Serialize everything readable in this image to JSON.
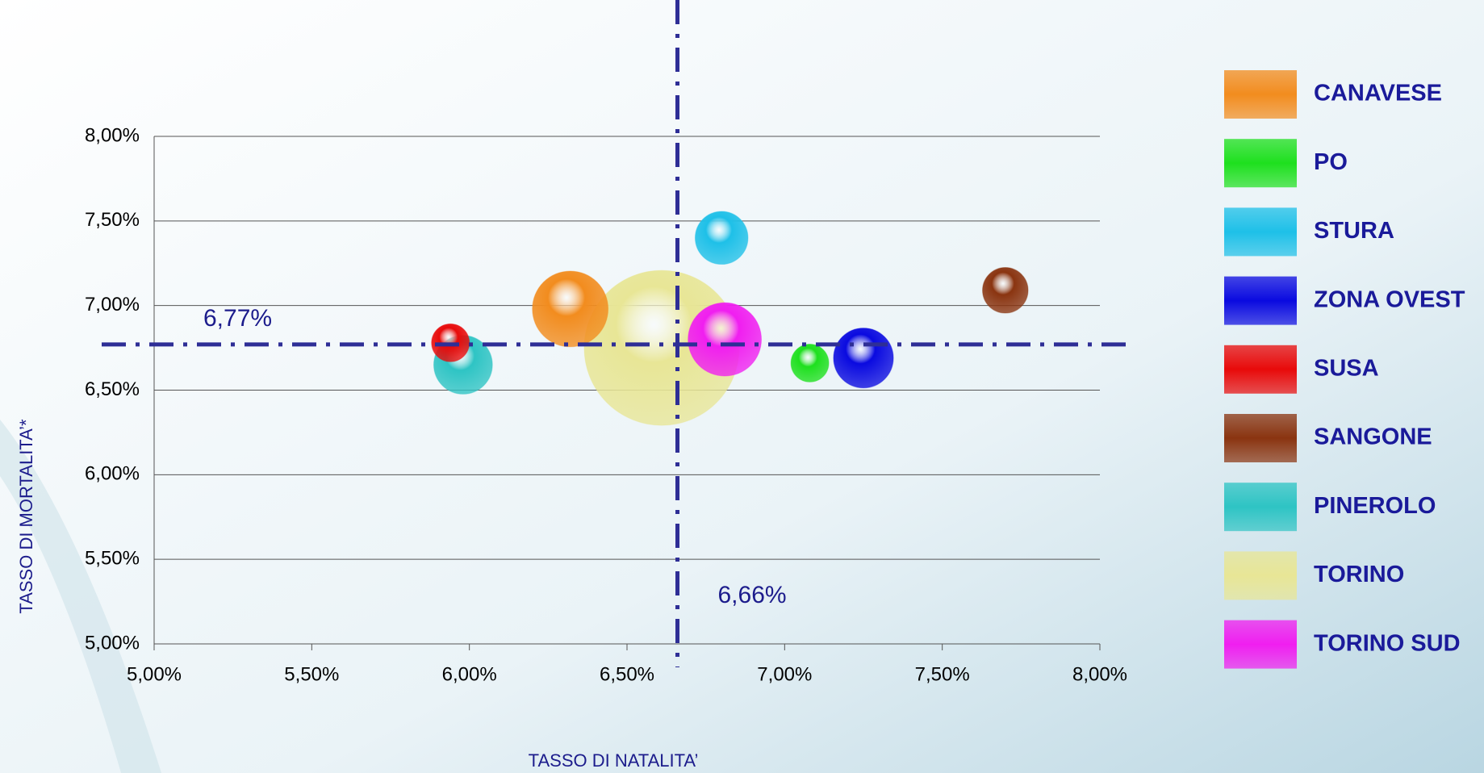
{
  "chart_data": {
    "type": "bubble",
    "x_label": "TASSO DI NATALITA’",
    "y_label": "TASSO DI MORTALITA’*",
    "xlim": [
      5,
      8
    ],
    "ylim": [
      5,
      8
    ],
    "xticks": [
      {
        "value": 5,
        "label": "5,00%"
      },
      {
        "value": 5.5,
        "label": "5,50%"
      },
      {
        "value": 6,
        "label": "6,00%"
      },
      {
        "value": 6.5,
        "label": "6,50%"
      },
      {
        "value": 7,
        "label": "7,00%"
      },
      {
        "value": 7.5,
        "label": "7,50%"
      },
      {
        "value": 8,
        "label": "8,00%"
      }
    ],
    "yticks": [
      {
        "value": 5,
        "label": "5,00%"
      },
      {
        "value": 5.5,
        "label": "5,50%"
      },
      {
        "value": 6,
        "label": "6,00%"
      },
      {
        "value": 6.5,
        "label": "6,50%"
      },
      {
        "value": 7,
        "label": "7,00%"
      },
      {
        "value": 7.5,
        "label": "7,50%"
      },
      {
        "value": 8,
        "label": "8,00%"
      }
    ],
    "grid": true,
    "reference_lines": {
      "y": {
        "value": 6.77,
        "label": "6,77%"
      },
      "x": {
        "value": 6.66,
        "label": "6,66%"
      }
    },
    "series": [
      {
        "name": "CANAVESE",
        "color": "#f28c1e",
        "x": 6.32,
        "y": 6.98,
        "size": 16
      },
      {
        "name": "PO",
        "color": "#1ee01e",
        "x": 7.08,
        "y": 6.66,
        "size": 4
      },
      {
        "name": "STURA",
        "color": "#1ec0e8",
        "x": 6.8,
        "y": 7.4,
        "size": 7.8
      },
      {
        "name": "ZONA OVEST",
        "color": "#0a0ae0",
        "x": 7.25,
        "y": 6.69,
        "size": 10
      },
      {
        "name": "SUSA",
        "color": "#e80a0a",
        "x": 5.94,
        "y": 6.78,
        "size": 4
      },
      {
        "name": "SANGONE",
        "color": "#8a3410",
        "x": 7.7,
        "y": 7.09,
        "size": 5.8
      },
      {
        "name": "PINEROLO",
        "color": "#2ec4c4",
        "x": 5.98,
        "y": 6.65,
        "size": 9.6
      },
      {
        "name": "TORINO",
        "color": "#e8e696",
        "x": 6.61,
        "y": 6.75,
        "size": 67
      },
      {
        "name": "TORINO SUD",
        "color": "#f01ef0",
        "x": 6.81,
        "y": 6.8,
        "size": 15
      }
    ]
  }
}
